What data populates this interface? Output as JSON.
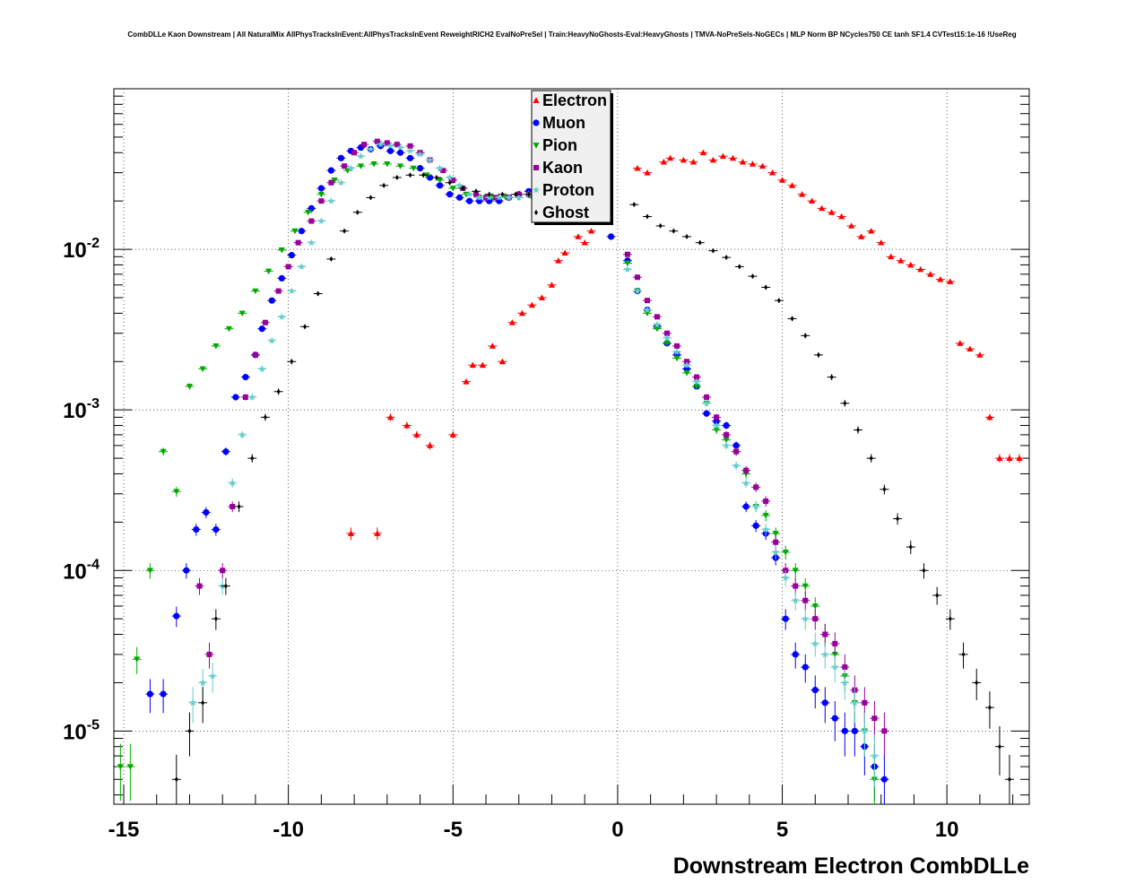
{
  "chart_data": {
    "type": "scatter",
    "title": "CombDLLe Kaon Downstream | All NaturalMix AllPhysTracksInEvent:AllPhysTracksInEvent ReweightRICH2 EvalNoPreSel | Train:HeavyNoGhosts-Eval:HeavyGhosts | TMVA-NoPreSels-NoGECs | MLP Norm BP NCycles750 CE tanh SF1.4 CVTest15:1e-16 !UseReg",
    "xlabel": "Downstream Electron CombDLLe",
    "ylabel": "",
    "xlim": [
      -15.3,
      12.5
    ],
    "ylim": [
      3.5e-06,
      0.1
    ],
    "yscale": "log",
    "grid": true,
    "legend_position": "top-center",
    "x_ticks": [
      -15,
      -10,
      -5,
      0,
      5,
      10
    ],
    "y_ticks": [
      {
        "value": 1e-05,
        "base": "10",
        "exp": "-5"
      },
      {
        "value": 0.0001,
        "base": "10",
        "exp": "-4"
      },
      {
        "value": 0.001,
        "base": "10",
        "exp": "-3"
      },
      {
        "value": 0.01,
        "base": "10",
        "exp": "-2"
      }
    ],
    "series": [
      {
        "name": "Electron",
        "color": "#ff0000",
        "marker": "triangle-up",
        "x": [
          -8.1,
          -7.3,
          -6.9,
          -6.4,
          -6.1,
          -5.7,
          -5.0,
          -4.6,
          -4.4,
          -4.1,
          -3.8,
          -3.5,
          -3.2,
          -2.9,
          -2.6,
          -2.3,
          -2.0,
          -1.8,
          -1.6,
          -1.2,
          -1.0,
          -0.8,
          0.6,
          0.9,
          1.4,
          1.6,
          2.0,
          2.3,
          2.6,
          2.9,
          3.2,
          3.5,
          3.8,
          4.1,
          4.4,
          4.7,
          5.0,
          5.3,
          5.6,
          5.9,
          6.2,
          6.5,
          6.8,
          7.1,
          7.4,
          7.7,
          8.0,
          8.3,
          8.6,
          8.9,
          9.2,
          9.5,
          9.8,
          10.1,
          10.4,
          10.7,
          11.0,
          11.3,
          11.6,
          11.9,
          12.2
        ],
        "y": [
          0.00017,
          0.00017,
          0.0009,
          0.0008,
          0.0007,
          0.0006,
          0.0007,
          0.0015,
          0.0019,
          0.0019,
          0.0025,
          0.002,
          0.0035,
          0.004,
          0.0045,
          0.005,
          0.006,
          0.0085,
          0.0095,
          0.012,
          0.011,
          0.013,
          0.032,
          0.03,
          0.035,
          0.037,
          0.036,
          0.035,
          0.04,
          0.036,
          0.038,
          0.037,
          0.035,
          0.034,
          0.033,
          0.03,
          0.027,
          0.025,
          0.022,
          0.02,
          0.018,
          0.017,
          0.016,
          0.014,
          0.012,
          0.013,
          0.011,
          0.009,
          0.0085,
          0.008,
          0.0075,
          0.007,
          0.0065,
          0.0063,
          0.0026,
          0.0024,
          0.0022,
          0.0009,
          0.0005,
          0.0005,
          0.0005
        ]
      },
      {
        "name": "Muon",
        "color": "#0000ff",
        "marker": "circle",
        "x": [
          -14.2,
          -13.8,
          -13.4,
          -13.1,
          -12.8,
          -12.5,
          -12.2,
          -11.9,
          -11.6,
          -11.3,
          -11.0,
          -10.8,
          -10.5,
          -10.2,
          -9.9,
          -9.6,
          -9.3,
          -9.0,
          -8.7,
          -8.4,
          -8.1,
          -7.8,
          -7.5,
          -7.2,
          -6.9,
          -6.6,
          -6.3,
          -6.0,
          -5.7,
          -5.4,
          -5.1,
          -4.8,
          -4.5,
          -4.2,
          -3.9,
          -3.6,
          -3.3,
          -3.0,
          -2.7,
          -2.4,
          -2.1,
          -1.8,
          -0.2,
          0.3,
          0.6,
          0.9,
          1.2,
          1.5,
          1.8,
          2.1,
          2.4,
          2.7,
          3.0,
          3.3,
          3.6,
          3.9,
          4.2,
          4.5,
          4.8,
          5.1,
          5.4,
          5.7,
          6.0,
          6.3,
          6.6,
          6.9,
          7.2,
          7.5,
          7.8,
          8.1
        ],
        "y": [
          1.7e-05,
          1.7e-05,
          5.2e-05,
          0.0001,
          0.00018,
          0.00023,
          0.00018,
          0.00055,
          0.0012,
          0.0016,
          0.0022,
          0.0032,
          0.0048,
          0.0066,
          0.0092,
          0.013,
          0.018,
          0.024,
          0.031,
          0.037,
          0.041,
          0.043,
          0.042,
          0.044,
          0.041,
          0.04,
          0.037,
          0.032,
          0.028,
          0.025,
          0.022,
          0.021,
          0.02,
          0.02,
          0.02,
          0.02,
          0.021,
          0.022,
          0.023,
          0.022,
          0.021,
          0.02,
          0.012,
          0.0085,
          0.0055,
          0.0042,
          0.0033,
          0.0026,
          0.0022,
          0.0018,
          0.0014,
          0.00095,
          0.00085,
          0.0008,
          0.0006,
          0.00025,
          0.00019,
          0.00017,
          0.00012,
          5e-05,
          3e-05,
          2.5e-05,
          1.8e-05,
          1.5e-05,
          1.2e-05,
          1e-05,
          1e-05,
          8e-06,
          6e-06,
          5e-06
        ]
      },
      {
        "name": "Pion",
        "color": "#00aa00",
        "marker": "triangle-down",
        "x": [
          -15.1,
          -14.8,
          -14.6,
          -14.2,
          -13.8,
          -13.4,
          -13.0,
          -12.6,
          -12.2,
          -11.8,
          -11.4,
          -11.0,
          -10.6,
          -10.2,
          -9.8,
          -9.4,
          -9.0,
          -8.6,
          -8.2,
          -7.8,
          -7.4,
          -7.0,
          -6.6,
          -6.2,
          -5.8,
          -5.4,
          -5.0,
          -4.6,
          -4.2,
          -3.8,
          -3.4,
          -3.0,
          -2.6,
          -2.2,
          -1.8,
          0.3,
          0.6,
          0.9,
          1.2,
          1.5,
          1.8,
          2.1,
          2.4,
          2.7,
          3.0,
          3.3,
          3.6,
          3.9,
          4.2,
          4.5,
          4.8,
          5.1,
          5.4,
          5.7,
          6.0,
          6.3,
          6.6,
          6.9,
          7.2,
          7.5,
          7.8
        ],
        "y": [
          6e-06,
          6e-06,
          2.8e-05,
          0.0001,
          0.00055,
          0.00031,
          0.0014,
          0.0018,
          0.0025,
          0.0032,
          0.004,
          0.0055,
          0.0073,
          0.0099,
          0.013,
          0.017,
          0.022,
          0.027,
          0.031,
          0.033,
          0.034,
          0.034,
          0.033,
          0.032,
          0.029,
          0.027,
          0.024,
          0.022,
          0.021,
          0.021,
          0.021,
          0.021,
          0.021,
          0.021,
          0.021,
          0.0082,
          0.0055,
          0.004,
          0.0032,
          0.0026,
          0.0021,
          0.0017,
          0.0014,
          0.0011,
          0.00075,
          0.00065,
          0.00055,
          0.0004,
          0.00025,
          0.00022,
          0.00017,
          0.00013,
          0.0001,
          8e-05,
          6e-05,
          4e-05,
          3e-05,
          2.2e-05,
          1.5e-05,
          1e-05,
          5e-06
        ]
      },
      {
        "name": "Kaon",
        "color": "#990099",
        "marker": "square",
        "x": [
          -12.7,
          -12.4,
          -12.0,
          -11.7,
          -11.3,
          -11.0,
          -10.7,
          -10.3,
          -10.0,
          -9.7,
          -9.3,
          -9.0,
          -8.7,
          -8.3,
          -8.0,
          -7.7,
          -7.3,
          -7.0,
          -6.7,
          -6.3,
          -6.0,
          -5.7,
          -5.3,
          -5.0,
          -4.7,
          -4.3,
          -4.0,
          -3.7,
          -3.3,
          -3.0,
          -2.7,
          -2.3,
          -2.0,
          -1.7,
          0.3,
          0.6,
          0.9,
          1.2,
          1.5,
          1.8,
          2.1,
          2.4,
          2.7,
          3.0,
          3.3,
          3.6,
          3.9,
          4.2,
          4.5,
          4.8,
          5.1,
          5.4,
          5.7,
          6.0,
          6.3,
          6.6,
          6.9,
          7.2,
          7.5,
          7.8,
          8.1
        ],
        "y": [
          8e-05,
          3e-05,
          0.0001,
          0.00025,
          0.0012,
          0.0022,
          0.0035,
          0.0055,
          0.0078,
          0.011,
          0.015,
          0.02,
          0.026,
          0.033,
          0.04,
          0.045,
          0.047,
          0.046,
          0.045,
          0.044,
          0.04,
          0.036,
          0.031,
          0.027,
          0.024,
          0.022,
          0.021,
          0.021,
          0.021,
          0.022,
          0.022,
          0.022,
          0.022,
          0.021,
          0.0093,
          0.0067,
          0.0048,
          0.0038,
          0.003,
          0.0025,
          0.002,
          0.0016,
          0.0012,
          0.0009,
          0.0007,
          0.00055,
          0.00042,
          0.00033,
          0.00027,
          0.00015,
          0.0001,
          8e-05,
          6.5e-05,
          5e-05,
          4e-05,
          3.5e-05,
          2.5e-05,
          1.8e-05,
          1.5e-05,
          1.2e-05,
          1e-05
        ]
      },
      {
        "name": "Proton",
        "color": "#66cccc",
        "marker": "star",
        "x": [
          -12.9,
          -12.6,
          -12.3,
          -12.0,
          -11.7,
          -11.4,
          -11.1,
          -10.8,
          -10.5,
          -10.2,
          -9.9,
          -9.6,
          -9.3,
          -9.0,
          -8.7,
          -8.4,
          -8.1,
          -7.8,
          -7.5,
          -7.2,
          -6.9,
          -6.6,
          -6.3,
          -6.0,
          -5.7,
          -5.4,
          -5.1,
          -4.8,
          -4.5,
          -4.2,
          -3.9,
          -3.6,
          -3.3,
          -3.0,
          -2.7,
          -2.4,
          -2.1,
          -1.8,
          0.3,
          0.6,
          0.9,
          1.2,
          1.5,
          1.8,
          2.1,
          2.4,
          2.7,
          3.0,
          3.3,
          3.6,
          3.9,
          4.2,
          4.5,
          4.8,
          5.1,
          5.4,
          5.7,
          6.0,
          6.3,
          6.6,
          6.9,
          7.2,
          7.5,
          7.8
        ],
        "y": [
          1.5e-05,
          2e-05,
          2.2e-05,
          8e-05,
          0.00035,
          0.0007,
          0.0012,
          0.0018,
          0.0027,
          0.0038,
          0.0055,
          0.0078,
          0.011,
          0.015,
          0.02,
          0.026,
          0.032,
          0.038,
          0.042,
          0.045,
          0.044,
          0.043,
          0.041,
          0.039,
          0.036,
          0.032,
          0.028,
          0.025,
          0.022,
          0.021,
          0.021,
          0.021,
          0.021,
          0.021,
          0.022,
          0.022,
          0.022,
          0.021,
          0.0075,
          0.0055,
          0.0042,
          0.0034,
          0.0028,
          0.0023,
          0.0019,
          0.0015,
          0.0011,
          0.0008,
          0.0006,
          0.00045,
          0.00035,
          0.00025,
          0.00018,
          0.00013,
          9e-05,
          6.5e-05,
          5e-05,
          3.5e-05,
          3e-05,
          2.5e-05,
          2e-05,
          1.5e-05,
          1e-05,
          7e-06
        ]
      },
      {
        "name": "Ghost",
        "color": "#000000",
        "marker": "diamond",
        "x": [
          -13.4,
          -13.0,
          -12.6,
          -12.2,
          -11.9,
          -11.5,
          -11.1,
          -10.7,
          -10.3,
          -9.9,
          -9.5,
          -9.1,
          -8.7,
          -8.3,
          -7.9,
          -7.5,
          -7.1,
          -6.7,
          -6.3,
          -5.9,
          -5.5,
          -5.1,
          -4.7,
          -4.3,
          -3.9,
          -3.5,
          -3.1,
          -2.7,
          -2.3,
          -1.9,
          0.5,
          0.9,
          1.3,
          1.7,
          2.1,
          2.5,
          2.9,
          3.3,
          3.7,
          4.1,
          4.5,
          4.9,
          5.3,
          5.7,
          6.1,
          6.5,
          6.9,
          7.3,
          7.7,
          8.1,
          8.5,
          8.9,
          9.3,
          9.7,
          10.1,
          10.5,
          10.9,
          11.3,
          11.6,
          11.9
        ],
        "y": [
          5e-06,
          1e-05,
          1.5e-05,
          5e-05,
          8e-05,
          0.00025,
          0.0005,
          0.0009,
          0.0013,
          0.002,
          0.0033,
          0.0053,
          0.0087,
          0.013,
          0.017,
          0.021,
          0.025,
          0.028,
          0.029,
          0.029,
          0.028,
          0.026,
          0.024,
          0.023,
          0.022,
          0.022,
          0.022,
          0.022,
          0.022,
          0.022,
          0.019,
          0.016,
          0.014,
          0.013,
          0.012,
          0.011,
          0.0098,
          0.0089,
          0.0078,
          0.0068,
          0.0058,
          0.0048,
          0.0037,
          0.0029,
          0.0022,
          0.0016,
          0.0011,
          0.00075,
          0.0005,
          0.00032,
          0.00021,
          0.00014,
          0.0001,
          7e-05,
          5e-05,
          3e-05,
          2e-05,
          1.4e-05,
          8e-06,
          5e-06
        ]
      }
    ]
  }
}
